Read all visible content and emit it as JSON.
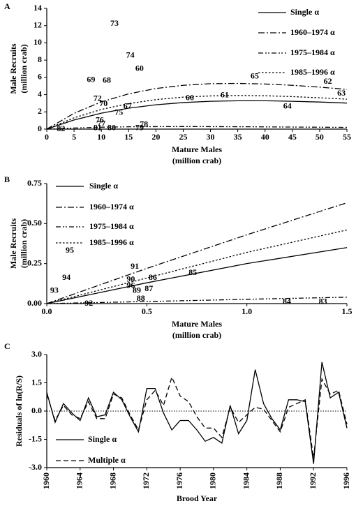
{
  "chart_data": [
    {
      "type": "line",
      "label": "A",
      "x_label": [
        "Mature Males",
        "(million crab)"
      ],
      "y_label": [
        "Male Recruits",
        "(million crab)"
      ],
      "xlim": [
        0,
        55
      ],
      "xticks": [
        0,
        5,
        10,
        15,
        20,
        25,
        30,
        35,
        40,
        45,
        50,
        55
      ],
      "ylim": [
        0,
        14
      ],
      "yticks": [
        0,
        2,
        4,
        6,
        8,
        10,
        12,
        14
      ],
      "legend": "upper right",
      "x": [
        0,
        5,
        10,
        15,
        20,
        25,
        30,
        35,
        40,
        45,
        50,
        55
      ],
      "series": [
        {
          "name": "Single α",
          "color": "#000000",
          "style": "solid",
          "values": [
            0,
            1.06,
            1.85,
            2.43,
            2.82,
            3.08,
            3.23,
            3.29,
            3.29,
            3.23,
            3.14,
            3.02
          ]
        },
        {
          "name": "1960–1974 α",
          "color": "#000000",
          "style": "dashdot",
          "values": [
            0,
            1.83,
            3.16,
            4.09,
            4.71,
            5.08,
            5.27,
            5.3,
            5.23,
            5.08,
            4.87,
            4.6
          ]
        },
        {
          "name": "1975–1984 α",
          "color": "#000000",
          "style": "dashdotdot",
          "values": [
            0,
            0.13,
            0.22,
            0.27,
            0.29,
            0.3,
            0.29,
            0.28,
            0.26,
            0.24,
            0.22,
            0.2
          ]
        },
        {
          "name": "1985–1996 α",
          "color": "#000000",
          "style": "dotted",
          "values": [
            0,
            1.31,
            2.28,
            2.96,
            3.42,
            3.71,
            3.85,
            3.9,
            3.87,
            3.77,
            3.63,
            3.47
          ]
        }
      ],
      "points": [
        {
          "label": "73",
          "x": 12.4,
          "y": 12.2
        },
        {
          "label": "74",
          "x": 15.3,
          "y": 8.5
        },
        {
          "label": "60",
          "x": 17.0,
          "y": 7.0
        },
        {
          "label": "69",
          "x": 8.1,
          "y": 5.7
        },
        {
          "label": "68",
          "x": 11.0,
          "y": 5.6
        },
        {
          "label": "65",
          "x": 38.1,
          "y": 6.1
        },
        {
          "label": "62",
          "x": 51.5,
          "y": 5.5
        },
        {
          "label": "63",
          "x": 54.0,
          "y": 4.1
        },
        {
          "label": "72",
          "x": 9.3,
          "y": 3.5
        },
        {
          "label": "70",
          "x": 10.4,
          "y": 2.9
        },
        {
          "label": "67",
          "x": 14.8,
          "y": 2.6
        },
        {
          "label": "66",
          "x": 26.2,
          "y": 3.6
        },
        {
          "label": "61",
          "x": 32.6,
          "y": 3.9
        },
        {
          "label": "64",
          "x": 44.1,
          "y": 2.6
        },
        {
          "label": "75",
          "x": 13.2,
          "y": 1.9
        },
        {
          "label": "76",
          "x": 9.7,
          "y": 1.0
        },
        {
          "label": "77",
          "x": 10.0,
          "y": 0.6
        },
        {
          "label": "78",
          "x": 17.8,
          "y": 0.5
        },
        {
          "label": "79",
          "x": 17.0,
          "y": 0.1
        },
        {
          "label": "80",
          "x": 11.9,
          "y": 0.1
        },
        {
          "label": "81",
          "x": 9.3,
          "y": 0.1
        },
        {
          "label": "82",
          "x": 2.6,
          "y": 0.0
        }
      ]
    },
    {
      "type": "line",
      "label": "B",
      "x_label": [
        "Mature Males",
        "(million crab)"
      ],
      "y_label": [
        "Male Recruits",
        "(million crab)"
      ],
      "xlim": [
        0,
        1.5
      ],
      "xticks": [
        {
          "value": 0,
          "label": "0.0"
        },
        0.5,
        {
          "value": 1,
          "label": "1.0"
        },
        1.5
      ],
      "ylim": [
        0,
        0.75
      ],
      "yticks": [
        {
          "value": 0,
          "label": "0.00"
        },
        0.25,
        {
          "value": 0.5,
          "label": "0.50"
        },
        0.75
      ],
      "legend": "upper left",
      "x": [
        0,
        0.5,
        1.0,
        1.5
      ],
      "series": [
        {
          "name": "Single α",
          "color": "#000000",
          "style": "solid",
          "values": [
            0,
            0.13,
            0.25,
            0.35
          ]
        },
        {
          "name": "1960–1974 α",
          "color": "#000000",
          "style": "dashdot",
          "values": [
            0,
            0.22,
            0.43,
            0.63
          ]
        },
        {
          "name": "1975–1984 α",
          "color": "#000000",
          "style": "dashdotdot",
          "values": [
            0,
            0.013,
            0.027,
            0.04
          ]
        },
        {
          "name": "1985–1996 α",
          "color": "#000000",
          "style": "dotted",
          "values": [
            0,
            0.16,
            0.32,
            0.46
          ]
        }
      ],
      "points": [
        {
          "label": "95",
          "x": 0.115,
          "y": 0.33
        },
        {
          "label": "94",
          "x": 0.098,
          "y": 0.16
        },
        {
          "label": "93",
          "x": 0.038,
          "y": 0.08
        },
        {
          "label": "91",
          "x": 0.44,
          "y": 0.23
        },
        {
          "label": "90",
          "x": 0.42,
          "y": 0.15
        },
        {
          "label": "86",
          "x": 0.53,
          "y": 0.16
        },
        {
          "label": "85",
          "x": 0.73,
          "y": 0.19
        },
        {
          "label": "96",
          "x": 0.42,
          "y": 0.11
        },
        {
          "label": "89",
          "x": 0.45,
          "y": 0.08
        },
        {
          "label": "87",
          "x": 0.51,
          "y": 0.09
        },
        {
          "label": "88",
          "x": 0.47,
          "y": 0.03
        },
        {
          "label": "92",
          "x": 0.21,
          "y": 0.0
        },
        {
          "label": "84",
          "x": 1.2,
          "y": 0.01
        },
        {
          "label": "83",
          "x": 1.38,
          "y": 0.01
        }
      ]
    },
    {
      "type": "line",
      "label": "C",
      "x_label": [
        "Brood Year"
      ],
      "y_label": [
        "Residuals of ln(R/S)"
      ],
      "xlim": [
        1960,
        1996
      ],
      "xticks": [
        1960,
        1964,
        1968,
        1972,
        1976,
        1980,
        1984,
        1988,
        1992,
        1996
      ],
      "rotate_xticks": true,
      "ylim": [
        -3,
        3
      ],
      "yticks": [
        {
          "value": -3,
          "label": "-3.0"
        },
        {
          "value": -1.5,
          "label": "-1.5"
        },
        {
          "value": 0,
          "label": "0.0"
        },
        1.5,
        {
          "value": 3,
          "label": "3.0"
        }
      ],
      "zero_line": true,
      "legend": "lower left",
      "x": [
        1960,
        1961,
        1962,
        1963,
        1964,
        1965,
        1966,
        1967,
        1968,
        1969,
        1970,
        1971,
        1972,
        1973,
        1974,
        1975,
        1976,
        1977,
        1978,
        1979,
        1980,
        1981,
        1982,
        1983,
        1984,
        1985,
        1986,
        1987,
        1988,
        1989,
        1990,
        1991,
        1992,
        1993,
        1994,
        1995,
        1996
      ],
      "series": [
        {
          "name": "Single α",
          "color": "#000000",
          "style": "solid",
          "values": [
            1.0,
            -0.6,
            0.4,
            -0.1,
            -0.5,
            0.7,
            -0.3,
            -0.2,
            1.0,
            0.6,
            -0.3,
            -1.1,
            1.2,
            1.2,
            -0.1,
            -1.0,
            -0.5,
            -0.5,
            -1.0,
            -1.6,
            -1.4,
            -1.7,
            0.3,
            -1.2,
            -0.5,
            2.2,
            0.4,
            -0.4,
            -1.0,
            0.6,
            0.6,
            0.5,
            -2.8,
            2.6,
            0.7,
            1.0,
            -0.9
          ]
        },
        {
          "name": "Multiple α",
          "color": "#000000",
          "style": "dashed",
          "values": [
            0.9,
            -0.5,
            0.3,
            -0.2,
            -0.4,
            0.5,
            -0.4,
            -0.4,
            0.9,
            0.7,
            -0.2,
            -1.0,
            0.6,
            1.1,
            0.3,
            1.8,
            0.8,
            0.5,
            -0.3,
            -0.9,
            -0.9,
            -1.4,
            0.2,
            -0.6,
            -0.2,
            0.2,
            0.1,
            -0.5,
            -1.1,
            0.2,
            0.4,
            0.6,
            -2.5,
            1.7,
            0.9,
            1.1,
            -0.7
          ]
        }
      ]
    }
  ]
}
